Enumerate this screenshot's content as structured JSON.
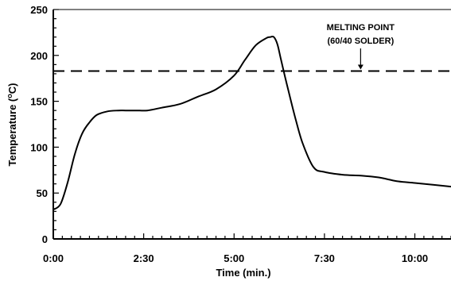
{
  "chart_data": {
    "type": "line",
    "title": "",
    "xlabel": "Time (min.)",
    "ylabel_parts": {
      "before": "Temperature (",
      "superscript": "o",
      "after": "C)"
    },
    "x_unit": "minutes",
    "xlim": [
      0,
      11
    ],
    "ylim": [
      0,
      250
    ],
    "x_ticks": [
      {
        "value": 0,
        "label": "0:00"
      },
      {
        "value": 2.5,
        "label": "2:30"
      },
      {
        "value": 5,
        "label": "5:00"
      },
      {
        "value": 7.5,
        "label": "7:30"
      },
      {
        "value": 10,
        "label": "10:00"
      }
    ],
    "y_ticks": [
      {
        "value": 0,
        "label": "0"
      },
      {
        "value": 50,
        "label": "50"
      },
      {
        "value": 100,
        "label": "100"
      },
      {
        "value": 150,
        "label": "150"
      },
      {
        "value": 200,
        "label": "200"
      },
      {
        "value": 250,
        "label": "250"
      }
    ],
    "grid": false,
    "series": [
      {
        "x": [
          0,
          0.2,
          0.4,
          0.6,
          0.8,
          1.0,
          1.2,
          1.5,
          1.8,
          2.0,
          2.3,
          2.6,
          3.0,
          3.5,
          4.0,
          4.5,
          5.0,
          5.3,
          5.6,
          5.9,
          6.0,
          6.1,
          6.2,
          6.3,
          6.5,
          6.7,
          6.9,
          7.2,
          7.5,
          8.0,
          8.5,
          9.0,
          9.5,
          10.0,
          10.5,
          11.0
        ],
        "y": [
          32,
          38,
          62,
          93,
          115,
          127,
          135,
          139,
          140,
          140,
          140,
          140,
          143,
          147,
          155,
          163,
          178,
          195,
          211,
          219,
          220,
          220,
          212,
          195,
          162,
          131,
          104,
          78,
          73,
          70,
          69,
          67,
          63,
          61,
          59,
          57
        ]
      }
    ],
    "reference_line": {
      "y": 183,
      "style": "dashed"
    },
    "annotation": {
      "lines": [
        "MELTING POINT",
        "(60/40 SOLDER)"
      ],
      "arrow_x": 8.5
    }
  }
}
